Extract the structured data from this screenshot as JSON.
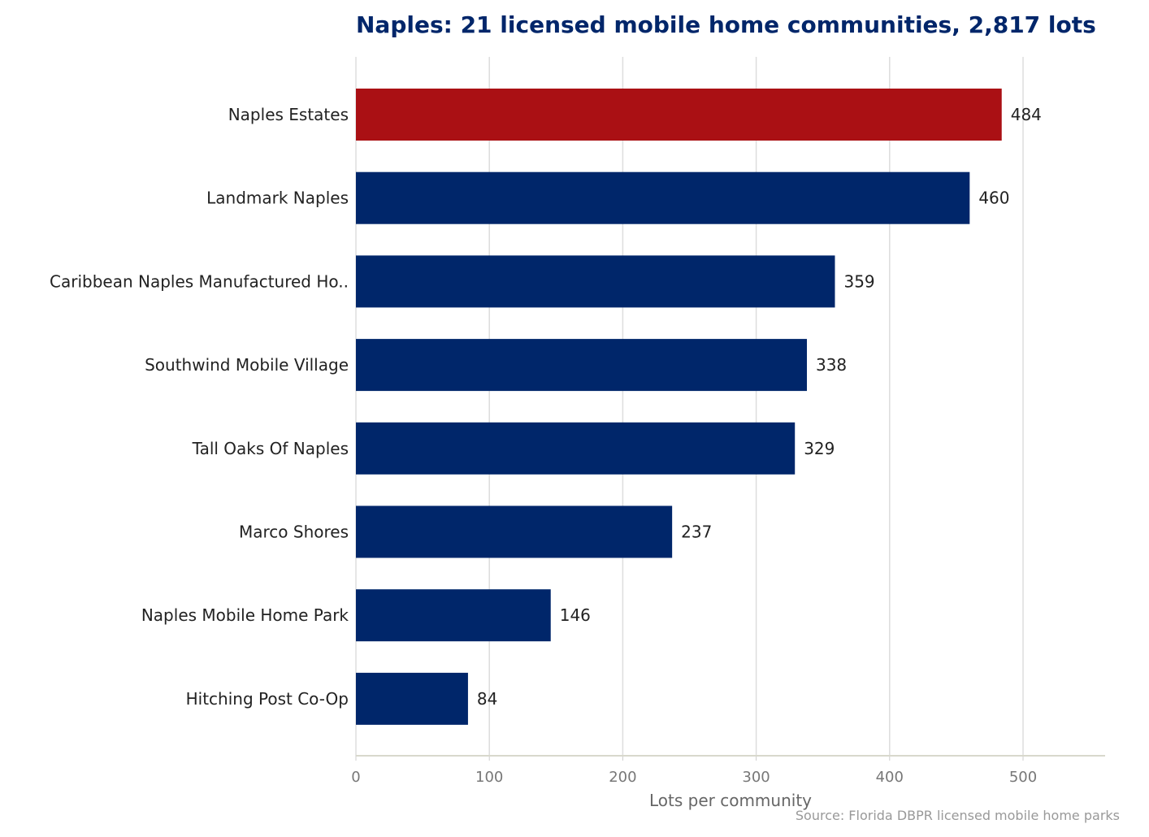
{
  "chart_data": {
    "type": "bar",
    "orientation": "horizontal",
    "title": "Naples: 21 licensed mobile home communities, 2,817 lots",
    "xlabel": "Lots per community",
    "ylabel": "",
    "source": "Source: Florida DBPR licensed mobile home parks",
    "categories": [
      "Naples Estates",
      "Landmark Naples",
      "Caribbean Naples Manufactured Ho..",
      "Southwind Mobile Village",
      "Tall Oaks Of Naples",
      "Marco Shores",
      "Naples Mobile Home Park",
      "Hitching Post Co-Op"
    ],
    "values": [
      484,
      460,
      359,
      338,
      329,
      237,
      146,
      84
    ],
    "value_labels": [
      "484",
      "460",
      "359",
      "338",
      "329",
      "237",
      "146",
      "84"
    ],
    "xlim": [
      0,
      560
    ],
    "xticks": [
      0,
      100,
      200,
      300,
      400,
      500
    ],
    "xtick_labels": [
      "0",
      "100",
      "200",
      "300",
      "400",
      "500"
    ],
    "grid": "vertical",
    "highlight_index": 0,
    "colors": {
      "bar": "#00266a",
      "highlight": "#aa1014",
      "grid": "#dddddd",
      "axis": "#d8d8cc"
    }
  }
}
